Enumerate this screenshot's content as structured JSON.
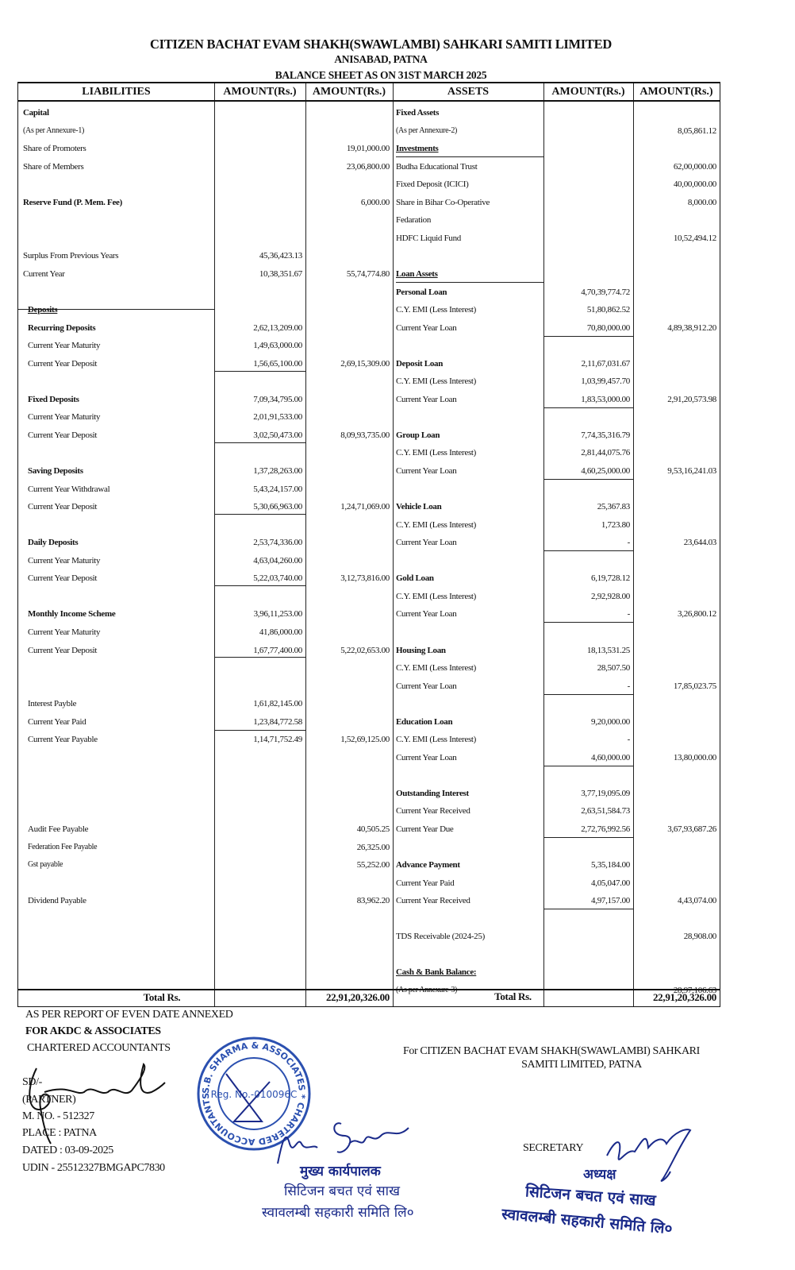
{
  "header": {
    "title": "CITIZEN BACHAT EVAM SHAKH(SWAWLAMBI) SAHKARI SAMITI LIMITED",
    "address": "ANISABAD, PATNA",
    "subtitle": "BALANCE SHEET AS  ON 31ST MARCH 2025"
  },
  "columns": {
    "liabilities": "LIABILITIES",
    "amount1": "AMOUNT(Rs.)",
    "amount2": "AMOUNT(Rs.)",
    "assets": "ASSETS",
    "amount3": "AMOUNT(Rs.)",
    "amount4": "AMOUNT(Rs.)"
  },
  "rows": [
    {
      "l": "Capital",
      "r": "Fixed Assets"
    },
    {
      "l": "(As per Annexure-1)",
      "r": "(As per Annexure-2)",
      "a4": "8,05,861.12"
    },
    {
      "l": "Share of Promoters",
      "a2": "19,01,000.00",
      "r": "Investments"
    },
    {
      "l": "Share of Members",
      "a2": "23,06,800.00",
      "r": "Budha Educational Trust",
      "a4": "62,00,000.00"
    },
    {
      "r": "Fixed Deposit (ICICI)",
      "a4": "40,00,000.00"
    },
    {
      "l": "Reserve Fund (P. Mem. Fee)",
      "a2": "6,000.00",
      "r": "Share in Bihar Co-Operative",
      "a4": "8,000.00"
    },
    {
      "r": "Fedaration"
    },
    {
      "r": "HDFC Liquid Fund",
      "a4": "10,52,494.12"
    },
    {
      "l": "Surplus From Previous Years",
      "a1": "45,36,423.13"
    },
    {
      "l": "Current Year",
      "a1": "10,38,351.67",
      "a2": "55,74,774.80",
      "r": "Loan Assets"
    },
    {
      "r": "Personal Loan",
      "a3": "4,70,39,774.72"
    },
    {
      "l": "Deposits",
      "r": "C.Y. EMI (Less Interest)",
      "a3": "51,80,862.52"
    },
    {
      "l": "Recurring Deposits",
      "a1": "2,62,13,209.00",
      "r": "Current Year Loan",
      "a3": "70,80,000.00",
      "a4": "4,89,38,912.20"
    },
    {
      "l": "Current Year Maturity",
      "a1": "1,49,63,000.00"
    },
    {
      "l": "Current Year Deposit",
      "a1": "1,56,65,100.00",
      "a2": "2,69,15,309.00",
      "r": "Deposit Loan",
      "a3": "2,11,67,031.67"
    },
    {
      "r": "C.Y. EMI (Less Interest)",
      "a3": "1,03,99,457.70"
    },
    {
      "l": "Fixed Deposits",
      "a1": "7,09,34,795.00",
      "r": "Current Year Loan",
      "a3": "1,83,53,000.00",
      "a4": "2,91,20,573.98"
    },
    {
      "l": "Current Year Maturity",
      "a1": "2,01,91,533.00"
    },
    {
      "l": "Current Year Deposit",
      "a1": "3,02,50,473.00",
      "a2": "8,09,93,735.00",
      "r": "Group Loan",
      "a3": "7,74,35,316.79"
    },
    {
      "r": "C.Y. EMI (Less Interest)",
      "a3": "2,81,44,075.76"
    },
    {
      "l": "Saving Deposits",
      "a1": "1,37,28,263.00",
      "r": "Current Year Loan",
      "a3": "4,60,25,000.00",
      "a4": "9,53,16,241.03"
    },
    {
      "l": "Current Year Withdrawal",
      "a1": "5,43,24,157.00"
    },
    {
      "l": "Current Year Deposit",
      "a1": "5,30,66,963.00",
      "a2": "1,24,71,069.00",
      "r": "Vehicle Loan",
      "a3": "25,367.83"
    },
    {
      "r": "C.Y. EMI (Less Interest)",
      "a3": "1,723.80"
    },
    {
      "l": "Daily Deposits",
      "a1": "2,53,74,336.00",
      "r": "Current Year Loan",
      "a3": "-",
      "a4": "23,644.03"
    },
    {
      "l": "Current Year Maturity",
      "a1": "4,63,04,260.00"
    },
    {
      "l": "Current Year Deposit",
      "a1": "5,22,03,740.00",
      "a2": "3,12,73,816.00",
      "r": "Gold Loan",
      "a3": "6,19,728.12"
    },
    {
      "r": "C.Y. EMI (Less Interest)",
      "a3": "2,92,928.00"
    },
    {
      "l": "Monthly Income Scheme",
      "a1": "3,96,11,253.00",
      "r": "Current Year Loan",
      "a3": "-",
      "a4": "3,26,800.12"
    },
    {
      "l": "Current Year Maturity",
      "a1": "41,86,000.00"
    },
    {
      "l": "Current Year Deposit",
      "a1": "1,67,77,400.00",
      "a2": "5,22,02,653.00",
      "r": "Housing Loan",
      "a3": "18,13,531.25"
    },
    {
      "r": "C.Y. EMI (Less Interest)",
      "a3": "28,507.50"
    },
    {
      "r": "Current Year Loan",
      "a3": "-",
      "a4": "17,85,023.75"
    },
    {
      "l": "Interest Payble",
      "a1": "1,61,82,145.00"
    },
    {
      "l": "Current Year Paid",
      "a1": "1,23,84,772.58",
      "r": "Education Loan",
      "a3": "9,20,000.00"
    },
    {
      "l": "Current Year Payable",
      "a1": "1,14,71,752.49",
      "a2": "1,52,69,125.00",
      "r": "C.Y. EMI (Less Interest)",
      "a3": "-"
    },
    {
      "r": "Current Year Loan",
      "a3": "4,60,000.00",
      "a4": "13,80,000.00"
    },
    {},
    {
      "r": "Outstanding Interest",
      "a3": "3,77,19,095.09"
    },
    {
      "r": "Current Year Received",
      "a3": "2,63,51,584.73"
    },
    {
      "l": "Audit Fee Payable",
      "a2": "40,505.25",
      "r": "Current Year Due",
      "a3": "2,72,76,992.56",
      "a4": "3,67,93,687.26"
    },
    {
      "l": "Federation Fee Payable",
      "a2": "26,325.00"
    },
    {
      "l": "Gst payable",
      "a2": "55,252.00",
      "r": "Advance Payment",
      "a3": "5,35,184.00"
    },
    {
      "r": "Current Year Paid",
      "a3": "4,05,047.00"
    },
    {
      "l": "Dividend Payable",
      "a2": "83,962.20",
      "r": "Current Year Received",
      "a3": "4,97,157.00",
      "a4": "4,43,074.00"
    },
    {},
    {
      "r": "TDS Receivable (2024-25)",
      "a4": "28,908.00"
    },
    {},
    {
      "r": "Cash & Bank Balance:"
    },
    {
      "r": "(As per Annexure-3)",
      "a4": "28,97,106.63"
    }
  ],
  "totals": {
    "liabilities_label": "Total Rs.",
    "liabilities_total": "22,91,20,326.00",
    "assets_label": "Total Rs.",
    "assets_total": "22,91,20,326.00"
  },
  "footer": {
    "report_line": "AS PER REPORT OF EVEN DATE ANNEXED",
    "firm": "FOR AKDC & ASSOCIATES",
    "firm_type": "CHARTERED ACCOUNTANTS",
    "sd": "SD/-",
    "partner": "(PARTNER)",
    "membership_no": "M. NO. - 512327",
    "place": "PLACE  : PATNA",
    "dated": "DATED : 03-09-2025",
    "udin": "UDIN - 25512327BMGAPC7830",
    "for_company_line1": "For  CITIZEN BACHAT EVAM SHAKH(SWAWLAMBI) SAHKARI",
    "for_company_line2": "SAMITI LIMITED, PATNA",
    "secretary": "SECRETARY"
  },
  "stamp": {
    "ring_text": "S.B. SHARMA & ASSOCIATES * CHARTERED ACCOUNTANTS *",
    "center_text": "Reg. No.-010096C"
  },
  "hindi_stamps": {
    "left_title": "मुख्य कार्यपालक",
    "left_line1": "सिटिजन बचत एवं साख",
    "left_line2": "स्वावलम्बी सहकारी समिति लि०",
    "right_title": "अध्यक्ष",
    "right_line1": "सिटिजन बचत एवं साख",
    "right_line2": "स्वावलम्बी सहकारी समिति लि०"
  },
  "signatures": {
    "left_handwritten": "Neeraj Sinha"
  },
  "colors": {
    "ink": "#111111",
    "stamp_blue": "#1a2a8a"
  }
}
